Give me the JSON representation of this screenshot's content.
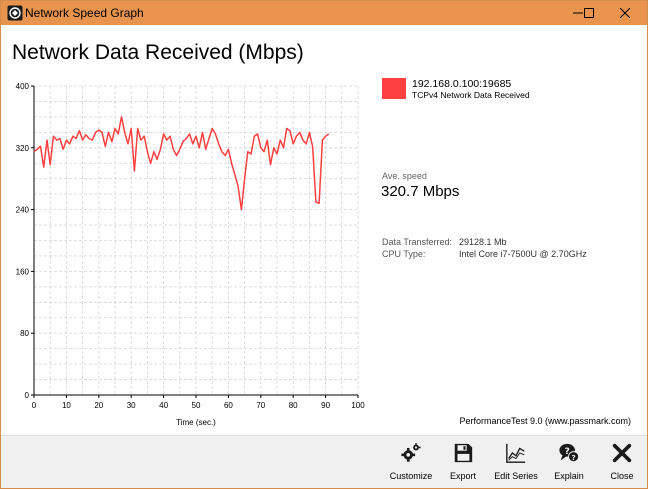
{
  "window": {
    "title": "Network Speed Graph"
  },
  "heading": "Network Data Received (Mbps)",
  "legend": {
    "host": "192.168.0.100:19685",
    "description": "TCPv4 Network Data Received",
    "color": "#ff4040"
  },
  "stats": {
    "ave_label": "Ave. speed",
    "ave_value": "320.7 Mbps",
    "rows": [
      {
        "key": "Data Transferred:",
        "value": "29128.1 Mb"
      },
      {
        "key": "CPU Type:",
        "value": "Intel Core i7-7500U @ 2.70GHz"
      }
    ]
  },
  "footer_note": "PerformanceTest 9.0 (www.passmark.com)",
  "toolbar": {
    "buttons": [
      {
        "label": "Customize",
        "icon": "gears-icon"
      },
      {
        "label": "Export",
        "icon": "save-icon"
      },
      {
        "label": "Edit Series",
        "icon": "line-chart-icon"
      },
      {
        "label": "Explain",
        "icon": "help-icon"
      },
      {
        "label": "Close",
        "icon": "close-x-icon"
      }
    ]
  },
  "chart_data": {
    "type": "line",
    "xlabel": "Time (sec.)",
    "ylabel": "",
    "xlim": [
      0,
      100
    ],
    "ylim": [
      0,
      400
    ],
    "xticks": [
      0,
      10,
      20,
      30,
      40,
      50,
      60,
      70,
      80,
      90,
      100
    ],
    "yticks": [
      0,
      80,
      160,
      240,
      320,
      400
    ],
    "grid": true,
    "series": [
      {
        "color": "#ff4040",
        "x": [
          0,
          1,
          2,
          3,
          4,
          5,
          6,
          7,
          8,
          9,
          10,
          11,
          12,
          13,
          14,
          15,
          16,
          17,
          18,
          19,
          20,
          21,
          22,
          23,
          24,
          25,
          26,
          27,
          28,
          29,
          30,
          31,
          32,
          33,
          34,
          35,
          36,
          37,
          38,
          39,
          40,
          41,
          42,
          43,
          44,
          45,
          46,
          47,
          48,
          49,
          50,
          51,
          52,
          53,
          54,
          55,
          56,
          57,
          58,
          59,
          60,
          61,
          62,
          63,
          64,
          65,
          66,
          67,
          68,
          69,
          70,
          71,
          72,
          73,
          74,
          75,
          76,
          77,
          78,
          79,
          80,
          81,
          82,
          83,
          84,
          85,
          86,
          87,
          88,
          89,
          90,
          91
        ],
        "y": [
          315,
          318,
          322,
          295,
          330,
          298,
          335,
          330,
          332,
          318,
          330,
          325,
          335,
          332,
          342,
          330,
          337,
          332,
          330,
          340,
          343,
          340,
          322,
          340,
          328,
          345,
          338,
          360,
          340,
          325,
          345,
          290,
          345,
          330,
          335,
          315,
          300,
          315,
          305,
          318,
          338,
          330,
          335,
          318,
          310,
          318,
          328,
          332,
          338,
          325,
          335,
          320,
          340,
          318,
          332,
          345,
          338,
          325,
          315,
          310,
          318,
          300,
          285,
          270,
          240,
          280,
          315,
          312,
          335,
          338,
          320,
          315,
          330,
          298,
          320,
          312,
          330,
          320,
          345,
          342,
          325,
          335,
          340,
          330,
          325,
          340,
          322,
          250,
          248,
          330,
          335,
          338
        ]
      }
    ]
  }
}
